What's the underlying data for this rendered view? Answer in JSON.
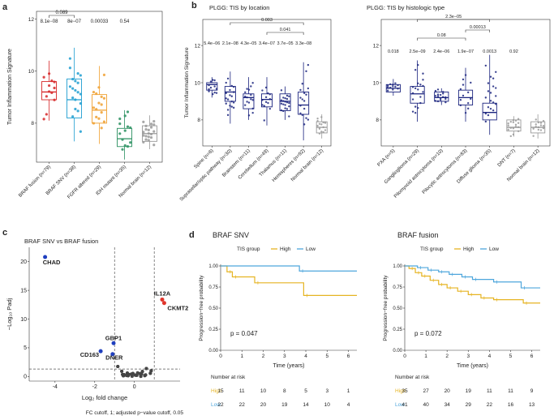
{
  "chart_data": [
    {
      "id": "a",
      "type": "box",
      "panel_label": "a",
      "ylabel": "Tumor Inflammation Signature",
      "ylim": [
        6.5,
        12.3
      ],
      "yticks": [
        "8",
        "10",
        "12"
      ],
      "categories": [
        "BRAF fusion (n=79)",
        "BRAF SNV (n=38)",
        "FGFR altered (n=29)",
        "IDH mutant (n=35)",
        "Normal brain (n=12)"
      ],
      "colors": [
        "#d62728",
        "#1f9ed1",
        "#f0a030",
        "#2a9060",
        "#999999"
      ],
      "medians": [
        9.2,
        8.9,
        8.5,
        7.4,
        7.6
      ],
      "q1": [
        8.9,
        8.2,
        8.0,
        7.1,
        7.3
      ],
      "q3": [
        9.6,
        9.7,
        9.1,
        7.8,
        7.9
      ],
      "whisker_low": [
        8.1,
        7.3,
        7.2,
        6.6,
        7.0
      ],
      "whisker_high": [
        10.4,
        10.9,
        10.2,
        8.5,
        8.3
      ],
      "pvalues": [
        "8.1e−08",
        "8e−07",
        "0.00033",
        "0.54"
      ],
      "bracket_label": "0.089"
    },
    {
      "id": "b1",
      "type": "box",
      "panel_label": "b",
      "title": "PLGG: TIS by location",
      "ylabel": "Tumor Inflammation Signature",
      "ylim": [
        6.6,
        13.4
      ],
      "yticks": [
        "8",
        "10",
        "12"
      ],
      "categories": [
        "Spine (n=6)",
        "Suprasellar/optic pathway (n=30)",
        "Brainstem (n=11)",
        "Cerebellum (n=49)",
        "Thalamus (n=11)",
        "Hemispheres (n=92)",
        "Normal brain (n=12)"
      ],
      "colors": [
        "#1a237e",
        "#1a237e",
        "#1a237e",
        "#1a237e",
        "#1a237e",
        "#1a237e",
        "#999999"
      ],
      "medians": [
        9.9,
        9.5,
        9.2,
        9.1,
        9.0,
        8.8,
        7.6
      ],
      "q1": [
        9.6,
        9.0,
        8.6,
        8.7,
        8.5,
        8.3,
        7.3
      ],
      "q3": [
        10.0,
        9.8,
        9.4,
        9.4,
        9.4,
        9.5,
        7.9
      ],
      "whisker_low": [
        9.2,
        7.8,
        8.0,
        7.7,
        8.0,
        6.9,
        7.0
      ],
      "whisker_high": [
        10.3,
        10.6,
        10.3,
        10.3,
        9.8,
        11.1,
        8.3
      ],
      "pvalues": [
        "5.4e−06",
        "2.1e−08",
        "4.3e−05",
        "3.4e−07",
        "3.7e−05",
        "3.3e−08"
      ],
      "brackets": [
        {
          "label": "0.003",
          "from": 1,
          "to": 5
        },
        {
          "label": "0.041",
          "from": 3,
          "to": 5
        }
      ]
    },
    {
      "id": "b2",
      "type": "box",
      "title": "PLGG: TIS by histologic type",
      "ylim": [
        6.6,
        13.4
      ],
      "yticks": [
        "8",
        "10",
        "12"
      ],
      "categories": [
        "PXA (n=5)",
        "Ganglioglioma (n=29)",
        "Pilomyxoid astrocytoma (n=10)",
        "Pilocytic astrocytoma (n=83)",
        "Diffuse glioma (n=35)",
        "DNT (n=7)",
        "Normal brain (n=12)"
      ],
      "colors": [
        "#1a237e",
        "#1a237e",
        "#1a237e",
        "#1a237e",
        "#1a237e",
        "#999999",
        "#999999"
      ],
      "medians": [
        9.7,
        9.4,
        9.2,
        9.2,
        8.4,
        7.6,
        7.6
      ],
      "q1": [
        9.5,
        8.9,
        9.0,
        8.8,
        8.0,
        7.4,
        7.3
      ],
      "q3": [
        9.9,
        9.8,
        9.5,
        9.6,
        8.9,
        8.0,
        7.9
      ],
      "whisker_low": [
        9.3,
        7.9,
        8.8,
        7.9,
        7.2,
        7.1,
        7.0
      ],
      "whisker_high": [
        10.2,
        11.2,
        9.7,
        10.8,
        11.5,
        8.2,
        8.3
      ],
      "pvalues": [
        "0.018",
        "2.5e−09",
        "2.4e−06",
        "1.9e−07",
        "0.0013",
        "0.92"
      ],
      "brackets": [
        {
          "label": "2.3e−05",
          "from": 1,
          "to": 4
        },
        {
          "label": "0.00013",
          "from": 3,
          "to": 4
        },
        {
          "label": "0.08",
          "from": 1,
          "to": 3
        }
      ]
    },
    {
      "id": "c",
      "type": "scatter",
      "panel_label": "c",
      "title": "BRAF SNV vs BRAF fusion",
      "xlabel": "Log₂ fold change",
      "ylabel": "−Log₁₀ Padj",
      "xlim": [
        -5.3,
        2.3
      ],
      "ylim": [
        -0.8,
        22.5
      ],
      "xticks": [
        -4,
        -2,
        0
      ],
      "yticks": [
        0,
        5,
        10,
        15,
        20
      ],
      "vlines": [
        -1,
        1
      ],
      "hline": 1.3,
      "caption": "FC cutoff, 1; adjusted p−value cutoff, 0.05",
      "labeled_points": [
        {
          "label": "CHAD",
          "x": -4.5,
          "y": 20.8,
          "color": "#1f3fbf"
        },
        {
          "label": "IL12A",
          "x": 1.4,
          "y": 13.4,
          "color": "#e0352b"
        },
        {
          "label": "CKMT2",
          "x": 1.5,
          "y": 12.8,
          "color": "#e0352b"
        },
        {
          "label": "GBP1",
          "x": -1.05,
          "y": 5.8,
          "color": "#1f3fbf"
        },
        {
          "label": "CD163",
          "x": -1.7,
          "y": 4.4,
          "color": "#1f3fbf"
        },
        {
          "label": "DNER",
          "x": -1.1,
          "y": 3.9,
          "color": "#1f3fbf"
        }
      ]
    },
    {
      "id": "d1",
      "type": "survival",
      "panel_label": "d",
      "title": "BRAF SNV",
      "legend_title": "TIS group",
      "series": [
        {
          "name": "High",
          "color": "#e6b422",
          "times": [
            0,
            0.3,
            0.55,
            1.6,
            3.9,
            6.4
          ],
          "surv": [
            1.0,
            0.93,
            0.87,
            0.8,
            0.65,
            0.65
          ]
        },
        {
          "name": "Low",
          "color": "#4ea6dc",
          "times": [
            0,
            3.7,
            6.4
          ],
          "surv": [
            1.0,
            0.94,
            0.94
          ]
        }
      ],
      "pvalue": "p = 0.047",
      "xlabel": "Time (years)",
      "ylabel": "Progression−free probability",
      "xticks": [
        "0",
        "1",
        "2",
        "3",
        "4",
        "5",
        "6"
      ],
      "yticks": [
        "0.00",
        "0.25",
        "0.50",
        "0.75",
        "1.00"
      ],
      "risk_title": "Number at risk",
      "risk": [
        {
          "name": "High",
          "color": "#e6b422",
          "values": [
            "15",
            "11",
            "10",
            "8",
            "5",
            "3",
            "1"
          ]
        },
        {
          "name": "Low",
          "color": "#4ea6dc",
          "values": [
            "22",
            "22",
            "20",
            "19",
            "14",
            "10",
            "4"
          ]
        }
      ]
    },
    {
      "id": "d2",
      "type": "survival",
      "title": "BRAF fusion",
      "legend_title": "TIS group",
      "series": [
        {
          "name": "High",
          "color": "#e6b422",
          "times": [
            0,
            0.2,
            0.5,
            0.8,
            1.2,
            1.6,
            2.0,
            2.5,
            3.0,
            3.6,
            4.2,
            5.6,
            6.4
          ],
          "surv": [
            1.0,
            0.97,
            0.92,
            0.88,
            0.83,
            0.78,
            0.74,
            0.7,
            0.66,
            0.62,
            0.6,
            0.56,
            0.56
          ]
        },
        {
          "name": "Low",
          "color": "#4ea6dc",
          "times": [
            0,
            0.6,
            1.1,
            1.6,
            2.1,
            2.7,
            3.2,
            4.2,
            5.5,
            6.4
          ],
          "surv": [
            1.0,
            0.98,
            0.95,
            0.93,
            0.9,
            0.87,
            0.84,
            0.81,
            0.74,
            0.74
          ]
        }
      ],
      "pvalue": "p = 0.072",
      "xlabel": "Time (years)",
      "ylabel": "Progression−free probability",
      "xticks": [
        "0",
        "1",
        "2",
        "3",
        "4",
        "5",
        "6"
      ],
      "yticks": [
        "0.00",
        "0.25",
        "0.50",
        "0.75",
        "1.00"
      ],
      "risk_title": "Number at risk",
      "risk": [
        {
          "name": "High",
          "color": "#e6b422",
          "values": [
            "35",
            "27",
            "20",
            "19",
            "11",
            "11",
            "9"
          ]
        },
        {
          "name": "Low",
          "color": "#4ea6dc",
          "values": [
            "41",
            "40",
            "34",
            "29",
            "22",
            "16",
            "13"
          ]
        }
      ]
    }
  ]
}
